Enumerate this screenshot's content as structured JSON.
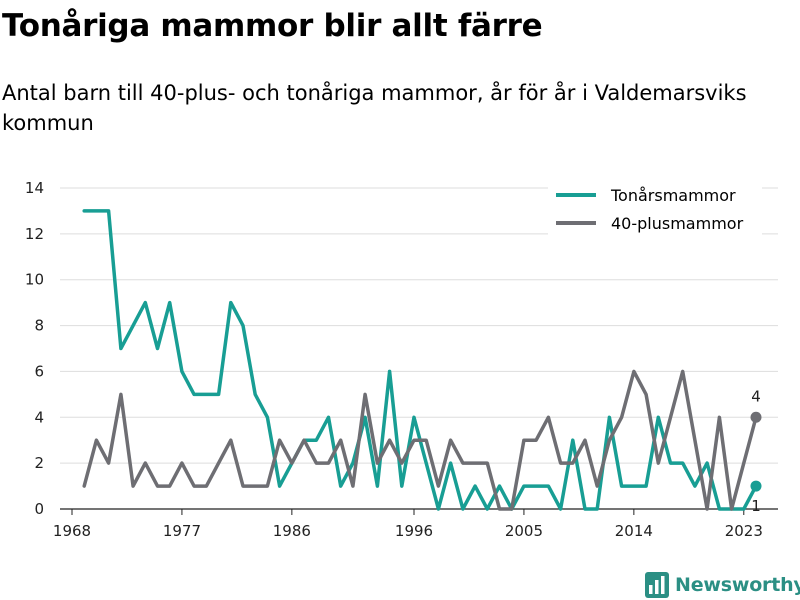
{
  "title": "Tonåriga mammor blir allt färre",
  "subtitle": "Antal barn till 40-plus- och tonåriga mammor, år för år i Valdemarsviks kommun",
  "brand": {
    "name": "Newsworthy",
    "logo_icon": "bar-chart-logo-icon",
    "color": "#2b8f84"
  },
  "chart_data": {
    "type": "line",
    "x": [
      1968,
      1969,
      1970,
      1971,
      1972,
      1973,
      1974,
      1975,
      1976,
      1977,
      1978,
      1979,
      1980,
      1981,
      1982,
      1983,
      1984,
      1985,
      1986,
      1987,
      1988,
      1989,
      1990,
      1991,
      1992,
      1993,
      1994,
      1995,
      1996,
      1997,
      1998,
      1999,
      2000,
      2001,
      2002,
      2003,
      2004,
      2005,
      2006,
      2007,
      2008,
      2009,
      2010,
      2011,
      2012,
      2013,
      2014,
      2015,
      2016,
      2017,
      2018,
      2019,
      2020,
      2021,
      2022,
      2023,
      2024
    ],
    "xticks": [
      1968,
      1977,
      1986,
      1996,
      2005,
      2014,
      2023
    ],
    "yticks": [
      0,
      2,
      4,
      6,
      8,
      10,
      12,
      14
    ],
    "ylim": [
      0,
      14
    ],
    "grid": true,
    "legend_position": "top-right",
    "series": [
      {
        "name": "Tonårsmammor",
        "color": "#189e94",
        "values": [
          null,
          13,
          13,
          13,
          7,
          8,
          9,
          7,
          9,
          6,
          5,
          5,
          5,
          9,
          8,
          5,
          4,
          1,
          2,
          3,
          3,
          4,
          1,
          2,
          4,
          1,
          6,
          1,
          4,
          2,
          0,
          2,
          0,
          1,
          0,
          1,
          0,
          1,
          1,
          1,
          0,
          3,
          0,
          0,
          4,
          1,
          1,
          1,
          4,
          2,
          2,
          1,
          2,
          0,
          0,
          0,
          1
        ],
        "end_label": "1"
      },
      {
        "name": "40-plusmammor",
        "color": "#6e6e73",
        "values": [
          null,
          1,
          3,
          2,
          5,
          1,
          2,
          1,
          1,
          2,
          1,
          1,
          2,
          3,
          1,
          1,
          1,
          3,
          2,
          3,
          2,
          2,
          3,
          1,
          5,
          2,
          3,
          2,
          3,
          3,
          1,
          3,
          2,
          2,
          2,
          0,
          0,
          3,
          3,
          4,
          2,
          2,
          3,
          1,
          3,
          4,
          6,
          5,
          2,
          4,
          6,
          3,
          0,
          4,
          0,
          2,
          4
        ],
        "end_label": "4"
      }
    ]
  }
}
